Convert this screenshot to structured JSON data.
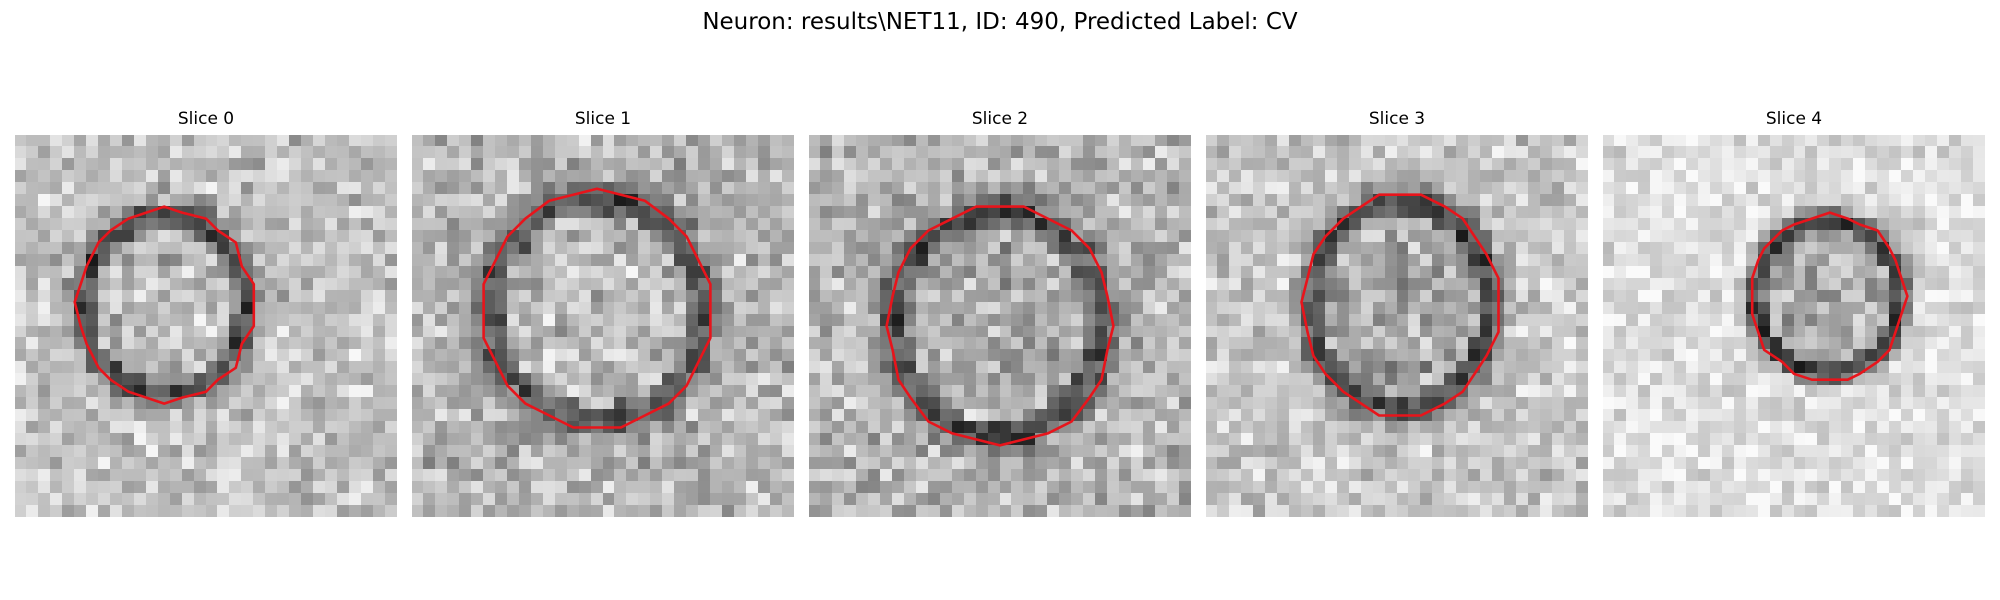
{
  "figure": {
    "title": "Neuron: results\\NET11, ID: 490, Predicted Label: CV"
  },
  "panels": [
    {
      "title": "Slice 0"
    },
    {
      "title": "Slice 1"
    },
    {
      "title": "Slice 2"
    },
    {
      "title": "Slice 3"
    },
    {
      "title": "Slice 4"
    }
  ],
  "colors": {
    "background": "#ffffff",
    "contour": "#e8141b",
    "colormap": "grayscale"
  }
}
